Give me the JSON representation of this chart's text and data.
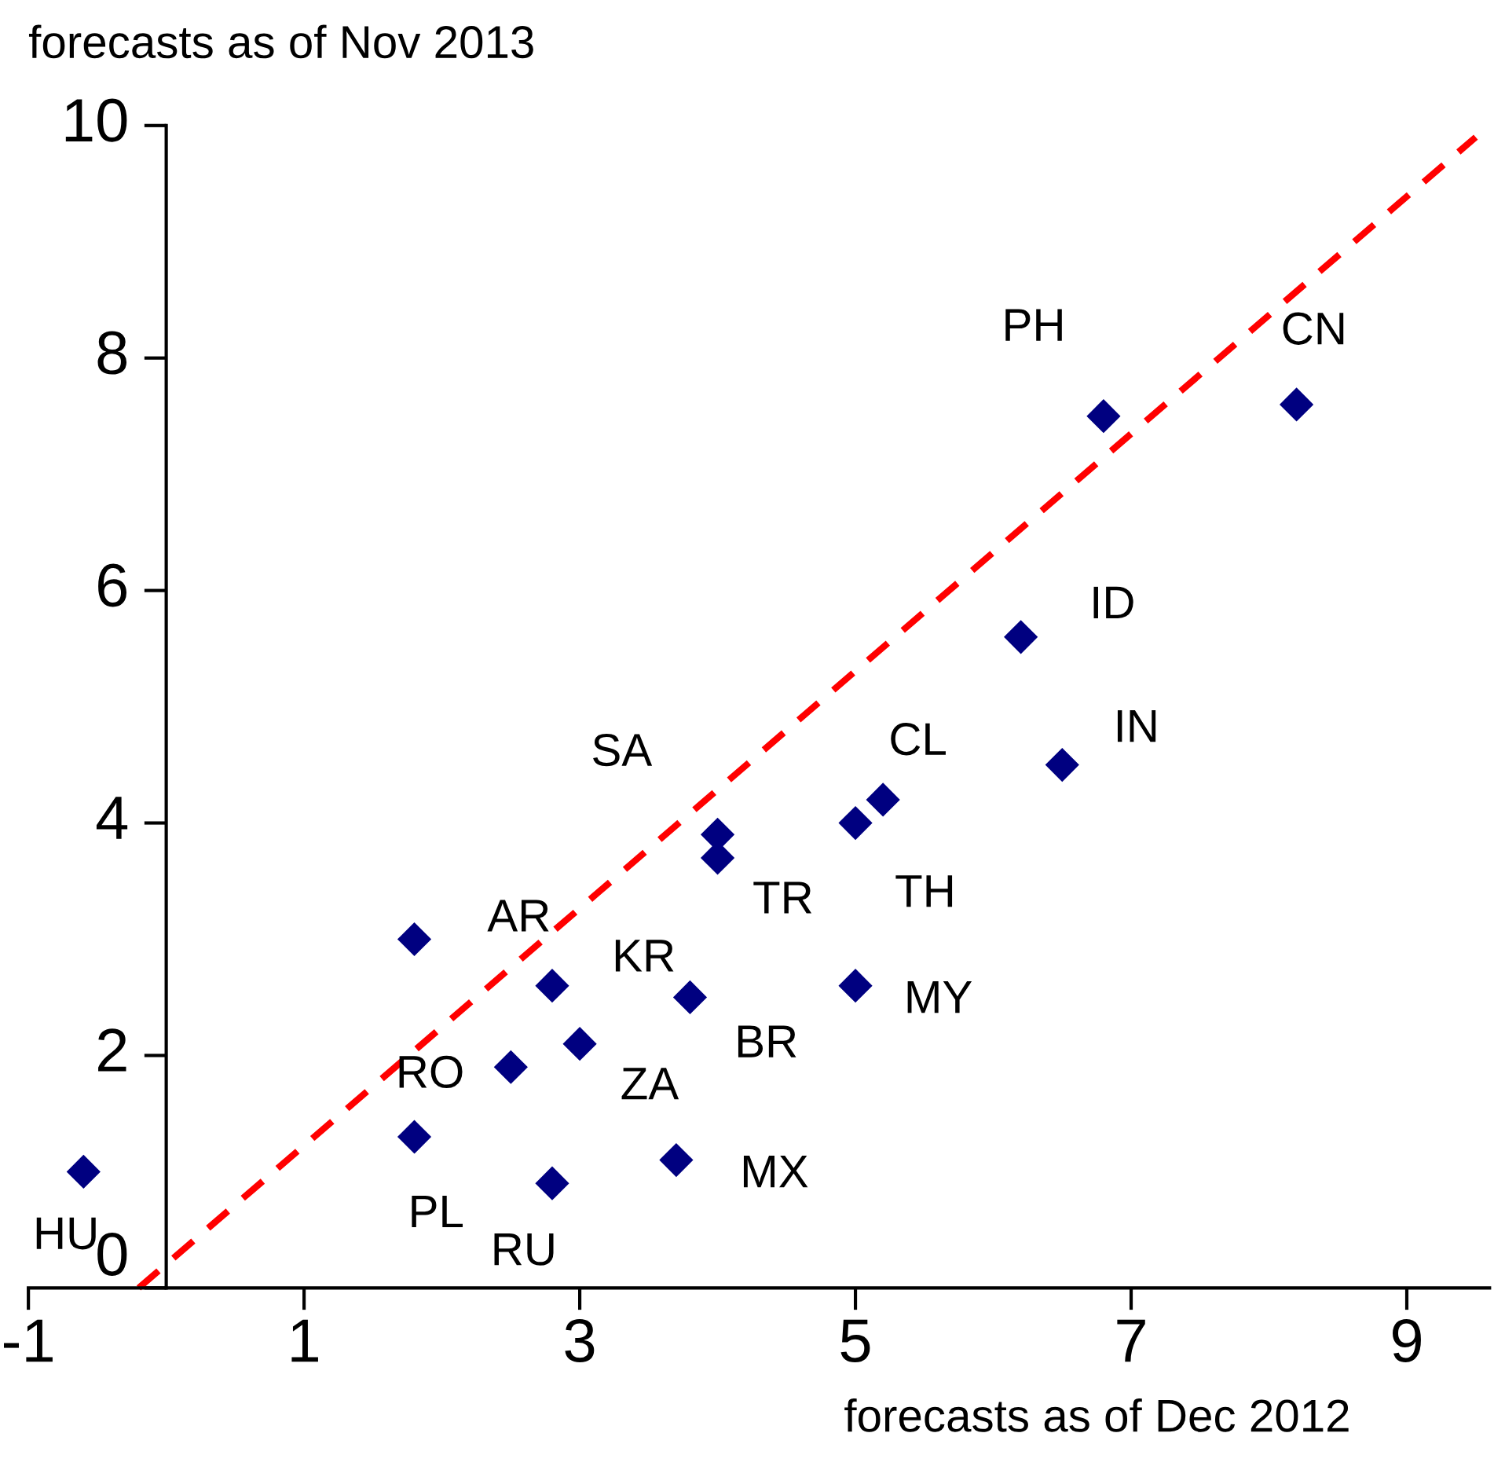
{
  "chart_data": {
    "type": "scatter",
    "ylabel": "forecasts as of Nov 2013",
    "xlabel": "forecasts as of Dec 2012",
    "xlim": [
      -1,
      9.6
    ],
    "xticks": [
      -1,
      1,
      3,
      5,
      7,
      9
    ],
    "ylim": [
      0,
      10
    ],
    "yticks": [
      0,
      2,
      4,
      6,
      8,
      10
    ],
    "grid": false,
    "legend": false,
    "series": [
      {
        "color": "#000080",
        "marker": "diamond",
        "x": [
          -0.6,
          1.8,
          2.8,
          3.7,
          2.5,
          3.0,
          1.8,
          2.8,
          3.8,
          4.0,
          4.0,
          5.0,
          5.2,
          5.0,
          6.5,
          6.2,
          6.8,
          8.2
        ],
        "values": [
          1.0,
          1.3,
          0.9,
          1.1,
          1.9,
          2.1,
          3.0,
          2.6,
          2.5,
          3.9,
          3.7,
          4.0,
          4.2,
          2.6,
          4.5,
          5.6,
          7.5,
          7.6
        ],
        "value_labels": [
          "HU",
          "PL",
          "RU",
          "MX",
          "RO",
          "ZA",
          "AR",
          "KR",
          "BR",
          "SA",
          "TR",
          "TH",
          "CL",
          "MY",
          "IN",
          "ID",
          "PH",
          "CN"
        ]
      },
      {
        "type": "line",
        "color": "#ff0000",
        "line_style": "dashed",
        "marker": "none",
        "x": [
          -0.2,
          9.5
        ],
        "values": [
          0,
          9.9
        ]
      }
    ]
  }
}
